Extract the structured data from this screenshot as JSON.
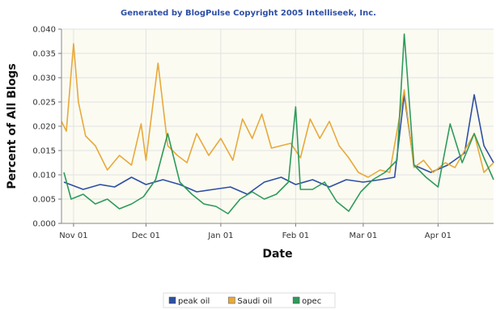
{
  "chart_data": {
    "type": "line",
    "title": "Generated by BlogPulse Copyright 2005 Intelliseek, Inc.",
    "xlabel": "Date",
    "ylabel": "Percent of All Blogs",
    "ylim": [
      0,
      0.04
    ],
    "yticks": [
      "0.000",
      "0.005",
      "0.010",
      "0.015",
      "0.020",
      "0.025",
      "0.030",
      "0.035",
      "0.040"
    ],
    "xlim": [
      "2005-10-27",
      "2006-04-24"
    ],
    "xticks": [
      {
        "date": "2005-11-01",
        "label": "Nov 01"
      },
      {
        "date": "2005-12-01",
        "label": "Dec 01"
      },
      {
        "date": "2006-01-01",
        "label": "Jan 01"
      },
      {
        "date": "2006-02-01",
        "label": "Feb 01"
      },
      {
        "date": "2006-03-01",
        "label": "Mar 01"
      },
      {
        "date": "2006-04-01",
        "label": "Apr 01"
      }
    ],
    "grid": true,
    "legend_position": "bottom",
    "series": [
      {
        "name": "peak oil",
        "color": "#2e4fa3",
        "points": [
          [
            "2005-10-28",
            0.0085
          ],
          [
            "2005-11-05",
            0.007
          ],
          [
            "2005-11-12",
            0.008
          ],
          [
            "2005-11-18",
            0.0075
          ],
          [
            "2005-11-25",
            0.0095
          ],
          [
            "2005-12-01",
            0.008
          ],
          [
            "2005-12-08",
            0.009
          ],
          [
            "2005-12-15",
            0.008
          ],
          [
            "2005-12-22",
            0.0065
          ],
          [
            "2005-12-29",
            0.007
          ],
          [
            "2006-01-05",
            0.0075
          ],
          [
            "2006-01-12",
            0.006
          ],
          [
            "2006-01-19",
            0.0085
          ],
          [
            "2006-01-26",
            0.0095
          ],
          [
            "2006-02-01",
            0.008
          ],
          [
            "2006-02-08",
            0.009
          ],
          [
            "2006-02-15",
            0.0075
          ],
          [
            "2006-02-22",
            0.009
          ],
          [
            "2006-03-01",
            0.0085
          ],
          [
            "2006-03-08",
            0.009
          ],
          [
            "2006-03-14",
            0.0095
          ],
          [
            "2006-03-18",
            0.0265
          ],
          [
            "2006-03-22",
            0.012
          ],
          [
            "2006-03-29",
            0.0105
          ],
          [
            "2006-04-05",
            0.012
          ],
          [
            "2006-04-12",
            0.0145
          ],
          [
            "2006-04-16",
            0.0265
          ],
          [
            "2006-04-20",
            0.016
          ],
          [
            "2006-04-24",
            0.0125
          ]
        ]
      },
      {
        "name": "Saudi oil",
        "color": "#e8a93a",
        "points": [
          [
            "2005-10-27",
            0.021
          ],
          [
            "2005-10-29",
            0.019
          ],
          [
            "2005-11-01",
            0.037
          ],
          [
            "2005-11-03",
            0.025
          ],
          [
            "2005-11-06",
            0.018
          ],
          [
            "2005-11-10",
            0.016
          ],
          [
            "2005-11-15",
            0.011
          ],
          [
            "2005-11-20",
            0.014
          ],
          [
            "2005-11-25",
            0.012
          ],
          [
            "2005-11-29",
            0.0205
          ],
          [
            "2005-12-01",
            0.013
          ],
          [
            "2005-12-06",
            0.033
          ],
          [
            "2005-12-10",
            0.016
          ],
          [
            "2005-12-14",
            0.014
          ],
          [
            "2005-12-18",
            0.0125
          ],
          [
            "2005-12-22",
            0.0185
          ],
          [
            "2005-12-27",
            0.014
          ],
          [
            "2006-01-01",
            0.0175
          ],
          [
            "2006-01-06",
            0.013
          ],
          [
            "2006-01-10",
            0.0215
          ],
          [
            "2006-01-14",
            0.0175
          ],
          [
            "2006-01-18",
            0.0225
          ],
          [
            "2006-01-22",
            0.0155
          ],
          [
            "2006-01-26",
            0.016
          ],
          [
            "2006-01-30",
            0.0165
          ],
          [
            "2006-02-03",
            0.0135
          ],
          [
            "2006-02-07",
            0.0215
          ],
          [
            "2006-02-11",
            0.0175
          ],
          [
            "2006-02-15",
            0.021
          ],
          [
            "2006-02-19",
            0.016
          ],
          [
            "2006-02-23",
            0.0135
          ],
          [
            "2006-02-27",
            0.0105
          ],
          [
            "2006-03-03",
            0.0095
          ],
          [
            "2006-03-08",
            0.011
          ],
          [
            "2006-03-12",
            0.0105
          ],
          [
            "2006-03-18",
            0.0275
          ],
          [
            "2006-03-22",
            0.0115
          ],
          [
            "2006-03-26",
            0.013
          ],
          [
            "2006-03-30",
            0.0105
          ],
          [
            "2006-04-04",
            0.0125
          ],
          [
            "2006-04-08",
            0.0115
          ],
          [
            "2006-04-12",
            0.015
          ],
          [
            "2006-04-16",
            0.0185
          ],
          [
            "2006-04-20",
            0.0105
          ],
          [
            "2006-04-24",
            0.0125
          ]
        ]
      },
      {
        "name": "opec",
        "color": "#2f9a5a",
        "points": [
          [
            "2005-10-28",
            0.0105
          ],
          [
            "2005-10-31",
            0.005
          ],
          [
            "2005-11-05",
            0.006
          ],
          [
            "2005-11-10",
            0.004
          ],
          [
            "2005-11-15",
            0.005
          ],
          [
            "2005-11-20",
            0.003
          ],
          [
            "2005-11-25",
            0.004
          ],
          [
            "2005-11-30",
            0.0055
          ],
          [
            "2005-12-05",
            0.009
          ],
          [
            "2005-12-10",
            0.0185
          ],
          [
            "2005-12-15",
            0.0085
          ],
          [
            "2005-12-20",
            0.006
          ],
          [
            "2005-12-25",
            0.004
          ],
          [
            "2005-12-30",
            0.0035
          ],
          [
            "2006-01-04",
            0.002
          ],
          [
            "2006-01-09",
            0.005
          ],
          [
            "2006-01-14",
            0.0065
          ],
          [
            "2006-01-19",
            0.005
          ],
          [
            "2006-01-24",
            0.006
          ],
          [
            "2006-01-29",
            0.0085
          ],
          [
            "2006-02-01",
            0.024
          ],
          [
            "2006-02-03",
            0.007
          ],
          [
            "2006-02-08",
            0.007
          ],
          [
            "2006-02-13",
            0.0085
          ],
          [
            "2006-02-18",
            0.0045
          ],
          [
            "2006-02-23",
            0.0025
          ],
          [
            "2006-02-28",
            0.0065
          ],
          [
            "2006-03-05",
            0.009
          ],
          [
            "2006-03-10",
            0.0105
          ],
          [
            "2006-03-15",
            0.013
          ],
          [
            "2006-03-18",
            0.039
          ],
          [
            "2006-03-22",
            0.012
          ],
          [
            "2006-03-27",
            0.0095
          ],
          [
            "2006-04-01",
            0.0075
          ],
          [
            "2006-04-06",
            0.0205
          ],
          [
            "2006-04-11",
            0.0125
          ],
          [
            "2006-04-16",
            0.0185
          ],
          [
            "2006-04-20",
            0.0135
          ],
          [
            "2006-04-24",
            0.009
          ]
        ]
      }
    ]
  }
}
